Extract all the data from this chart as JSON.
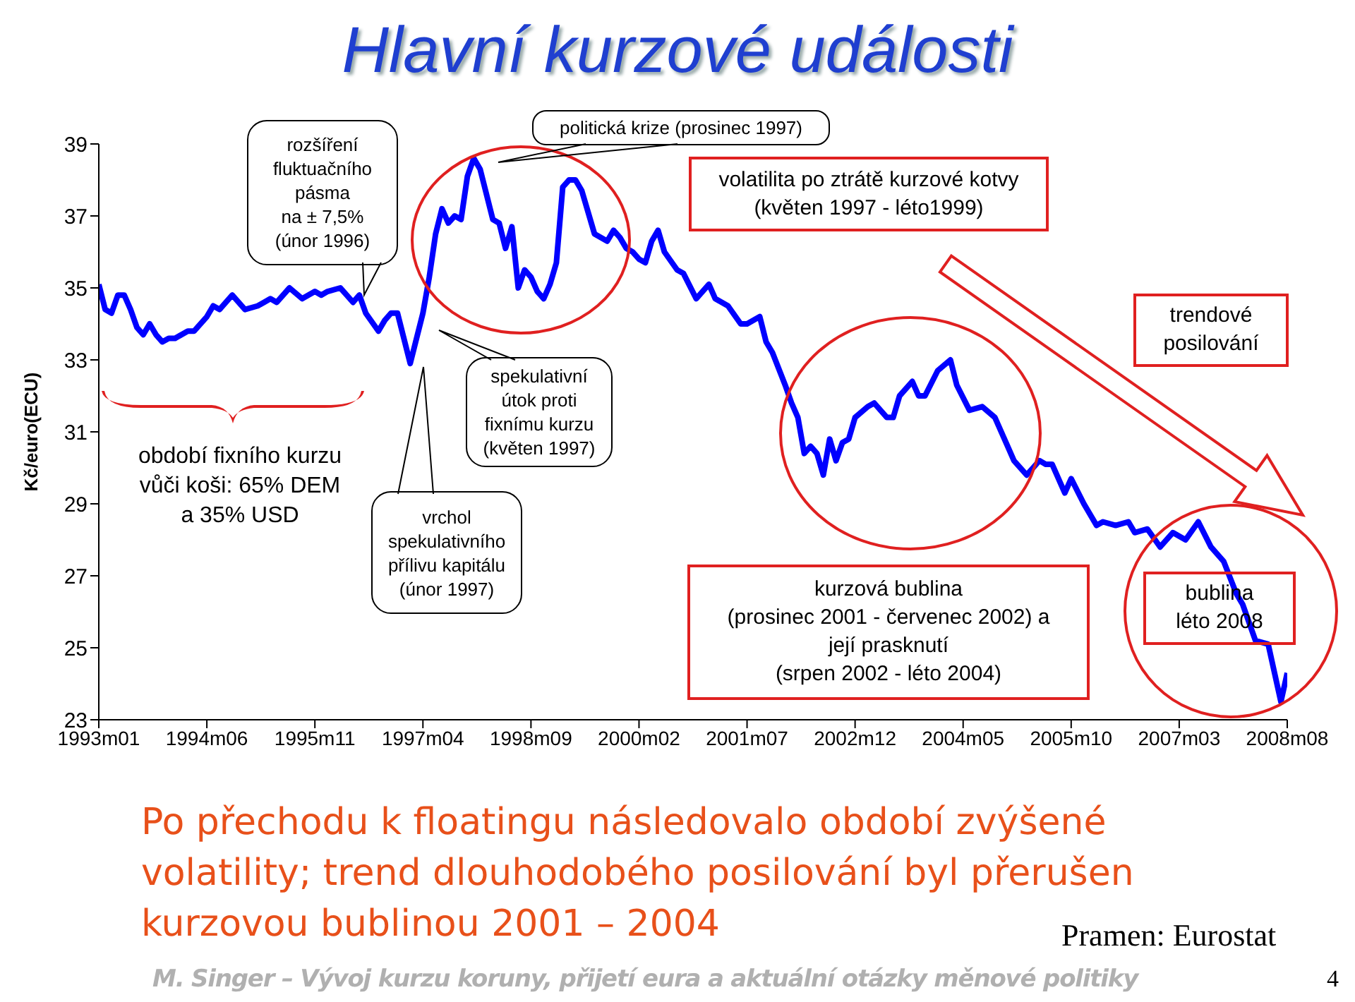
{
  "chart_data": {
    "type": "line",
    "title": "Hlavní kurzové události",
    "ylabel": "Kč/euro(ECU)",
    "xlim": [
      "1993-01",
      "2008-08"
    ],
    "ylim": [
      23,
      39
    ],
    "yticks": [
      23,
      25,
      27,
      29,
      31,
      33,
      35,
      37,
      39
    ],
    "xticks": [
      {
        "value": "1993-01",
        "label": "1993m01"
      },
      {
        "value": "1994-06",
        "label": "1994m06"
      },
      {
        "value": "1995-11",
        "label": "1995m11"
      },
      {
        "value": "1997-04",
        "label": "1997m04"
      },
      {
        "value": "1998-09",
        "label": "1998m09"
      },
      {
        "value": "2000-02",
        "label": "2000m02"
      },
      {
        "value": "2001-07",
        "label": "2001m07"
      },
      {
        "value": "2002-12",
        "label": "2002m12"
      },
      {
        "value": "2004-05",
        "label": "2004m05"
      },
      {
        "value": "2005-10",
        "label": "2005m10"
      },
      {
        "value": "2007-03",
        "label": "2007m03"
      },
      {
        "value": "2008-08",
        "label": "2008m08"
      }
    ],
    "series": [
      {
        "color": "#0000ff",
        "x": [
          "1993-01",
          "1993-02",
          "1993-03",
          "1993-04",
          "1993-05",
          "1993-06",
          "1993-07",
          "1993-08",
          "1993-09",
          "1993-10",
          "1993-11",
          "1993-12",
          "1994-01",
          "1994-03",
          "1994-04",
          "1994-06",
          "1994-07",
          "1994-08",
          "1994-10",
          "1994-12",
          "1995-02",
          "1995-03",
          "1995-04",
          "1995-05",
          "1995-07",
          "1995-09",
          "1995-11",
          "1995-12",
          "1996-01",
          "1996-03",
          "1996-04",
          "1996-05",
          "1996-06",
          "1996-07",
          "1996-09",
          "1996-10",
          "1996-11",
          "1996-12",
          "1997-01",
          "1997-02",
          "1997-04",
          "1997-05",
          "1997-06",
          "1997-07",
          "1997-08",
          "1997-09",
          "1997-10",
          "1997-11",
          "1997-12",
          "1998-01",
          "1998-03",
          "1998-04",
          "1998-05",
          "1998-06",
          "1998-07",
          "1998-08",
          "1998-09",
          "1998-10",
          "1998-11",
          "1998-12",
          "1999-01",
          "1999-02",
          "1999-03",
          "1999-04",
          "1999-05",
          "1999-07",
          "1999-09",
          "1999-10",
          "1999-11",
          "1999-12",
          "2000-01",
          "2000-02",
          "2000-03",
          "2000-04",
          "2000-05",
          "2000-06",
          "2000-08",
          "2000-09",
          "2000-11",
          "2001-01",
          "2001-02",
          "2001-04",
          "2001-06",
          "2001-07",
          "2001-09",
          "2001-10",
          "2001-11",
          "2002-01",
          "2002-02",
          "2002-03",
          "2002-04",
          "2002-05",
          "2002-06",
          "2002-07",
          "2002-08",
          "2002-09",
          "2002-10",
          "2002-11",
          "2002-12",
          "2003-02",
          "2003-03",
          "2003-05",
          "2003-06",
          "2003-07",
          "2003-09",
          "2003-10",
          "2003-11",
          "2004-01",
          "2004-03",
          "2004-04",
          "2004-06",
          "2004-08",
          "2004-10",
          "2004-12",
          "2005-01",
          "2005-03",
          "2005-05",
          "2005-06",
          "2005-07",
          "2005-09",
          "2005-10",
          "2005-12",
          "2006-02",
          "2006-03",
          "2006-05",
          "2006-07",
          "2006-08",
          "2006-10",
          "2006-12",
          "2007-02",
          "2007-04",
          "2007-06",
          "2007-08",
          "2007-10",
          "2007-12",
          "2008-01",
          "2008-03",
          "2008-05",
          "2008-07",
          "2008-08"
        ],
        "values": [
          35.1,
          34.4,
          34.3,
          34.8,
          34.8,
          34.4,
          33.9,
          33.7,
          34.0,
          33.7,
          33.5,
          33.6,
          33.6,
          33.8,
          33.8,
          34.2,
          34.5,
          34.4,
          34.8,
          34.4,
          34.5,
          34.6,
          34.7,
          34.6,
          35.0,
          34.7,
          34.9,
          34.8,
          34.9,
          35.0,
          34.8,
          34.6,
          34.8,
          34.3,
          33.8,
          34.1,
          34.3,
          34.3,
          33.6,
          32.9,
          34.3,
          35.3,
          36.5,
          37.2,
          36.8,
          37.0,
          36.9,
          38.1,
          38.6,
          38.3,
          36.9,
          36.8,
          36.1,
          36.7,
          35.0,
          35.5,
          35.3,
          34.9,
          34.7,
          35.1,
          35.7,
          37.8,
          38.0,
          38.0,
          37.7,
          36.5,
          36.3,
          36.6,
          36.4,
          36.1,
          36.0,
          35.8,
          35.7,
          36.3,
          36.6,
          36.0,
          35.5,
          35.4,
          34.7,
          35.1,
          34.7,
          34.5,
          34.0,
          34.0,
          34.2,
          33.5,
          33.2,
          32.3,
          31.8,
          31.4,
          30.4,
          30.6,
          30.4,
          29.8,
          30.8,
          30.2,
          30.7,
          30.8,
          31.4,
          31.7,
          31.8,
          31.4,
          31.4,
          32.0,
          32.4,
          32.0,
          32.0,
          32.7,
          33.0,
          32.3,
          31.6,
          31.7,
          31.4,
          30.6,
          30.2,
          29.8,
          30.2,
          30.1,
          30.1,
          29.3,
          29.7,
          29.0,
          28.4,
          28.5,
          28.4,
          28.5,
          28.2,
          28.3,
          27.8,
          28.2,
          28.0,
          28.5,
          27.8,
          27.4,
          26.5,
          26.2,
          25.2,
          25.1,
          23.5,
          24.3
        ]
      }
    ],
    "annotations": [
      "rozšíření\nfluktuačního\npásma\nna ± 7,5%\n(únor 1996)",
      "politická krize (prosinec 1997)",
      "volatilita po ztrátě kurzové kotvy\n(květen 1997 - léto1999)",
      "spekulativní\nútok proti\nfixnímu kurzu\n(květen 1997)",
      "vrchol\nspekulativního\npřílivu kapitálu\n(únor 1997)",
      "období fixního kurzu\nvůči koši: 65% DEM\na 35% USD",
      "trendové\nposilování",
      "kurzová bublina\n(prosinec 2001 - červenec 2002) a\njejí prasknutí\n(srpen 2002 - léto 2004)",
      "bublina\nléto 2008",
      "Po přechodu k floatingu následovalo období zvýšené volatility; trend dlouhodobého posilování byl přerušen kurzovou bublinou 2001 – 2004",
      "Pramen: Eurostat",
      "M. Singer – Vývoj kurzu koruny, přijetí eura a aktuální otázky měnové politiky",
      "4"
    ]
  }
}
